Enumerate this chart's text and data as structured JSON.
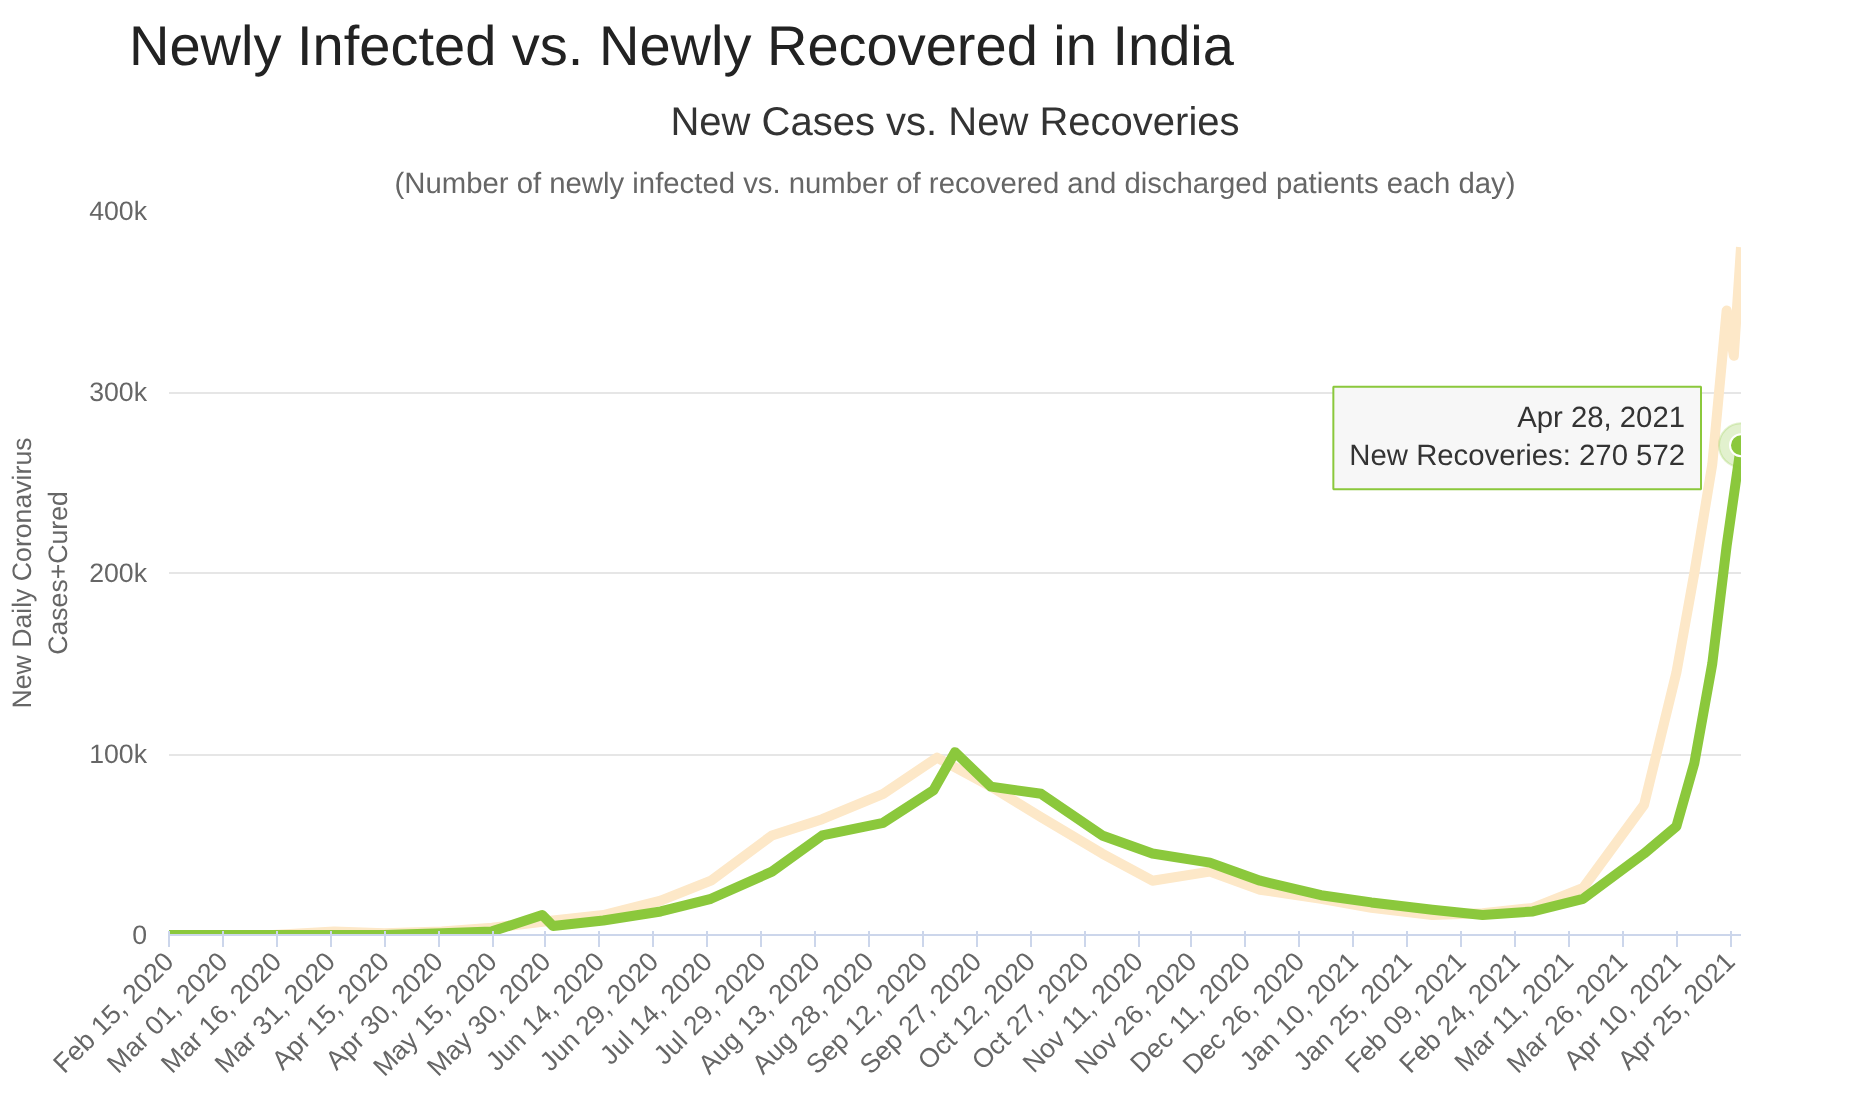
{
  "chart_data": {
    "type": "line",
    "title": "New Cases vs. New Recoveries",
    "subtitle": "(Number of newly infected vs. number of recovered and discharged patients each day)",
    "ylabel": "New Daily Coronavirus Cases+Cured",
    "annotations": [
      "Newly Infected vs. Newly Recovered in India",
      {
        "text": "Apr 28, 2021\nNew Recoveries: 270 572",
        "x": "2021-04-28",
        "y": 270572
      }
    ],
    "series": [
      {
        "color": "#fde8c8",
        "x": [
          "2020-02-15",
          "2020-03-15",
          "2020-04-01",
          "2020-04-15",
          "2020-05-01",
          "2020-05-15",
          "2020-06-01",
          "2020-06-15",
          "2020-07-01",
          "2020-07-15",
          "2020-08-01",
          "2020-08-15",
          "2020-09-01",
          "2020-09-16",
          "2020-10-01",
          "2020-10-15",
          "2020-11-01",
          "2020-11-15",
          "2020-12-01",
          "2020-12-15",
          "2021-01-01",
          "2021-01-15",
          "2021-02-01",
          "2021-02-15",
          "2021-03-01",
          "2021-03-15",
          "2021-04-01",
          "2021-04-10",
          "2021-04-15",
          "2021-04-20",
          "2021-04-24",
          "2021-04-26",
          "2021-04-28"
        ],
        "values": [
          0,
          0,
          2000,
          1000,
          2000,
          4000,
          8000,
          11000,
          19000,
          30000,
          55000,
          64000,
          78000,
          98000,
          82000,
          65000,
          45000,
          30000,
          35000,
          25000,
          20000,
          15000,
          11000,
          12000,
          15000,
          26000,
          72000,
          145000,
          200000,
          260000,
          345000,
          320000,
          380000
        ]
      },
      {
        "color": "#8bc83c",
        "x": [
          "2020-02-15",
          "2020-03-15",
          "2020-04-01",
          "2020-04-15",
          "2020-05-01",
          "2020-05-15",
          "2020-05-29",
          "2020-06-01",
          "2020-06-15",
          "2020-07-01",
          "2020-07-15",
          "2020-08-01",
          "2020-08-15",
          "2020-09-01",
          "2020-09-15",
          "2020-09-21",
          "2020-10-01",
          "2020-10-15",
          "2020-11-01",
          "2020-11-15",
          "2020-12-01",
          "2020-12-15",
          "2021-01-01",
          "2021-01-15",
          "2021-02-01",
          "2021-02-15",
          "2021-03-01",
          "2021-03-15",
          "2021-04-01",
          "2021-04-10",
          "2021-04-15",
          "2021-04-20",
          "2021-04-24",
          "2021-04-28"
        ],
        "values": [
          0,
          0,
          0,
          0,
          1000,
          2000,
          11000,
          5000,
          8000,
          13000,
          20000,
          35000,
          55000,
          62000,
          80000,
          101000,
          82000,
          78000,
          55000,
          45000,
          40000,
          30000,
          22000,
          18000,
          14000,
          11000,
          13000,
          20000,
          45000,
          60000,
          95000,
          150000,
          215000,
          270572
        ]
      }
    ],
    "xlim": [
      "2020-02-15",
      "2021-04-28"
    ],
    "xticks": [
      {
        "value": "2020-02-15",
        "label": "Feb 15, 2020"
      },
      {
        "value": "2020-03-01",
        "label": "Mar 01, 2020"
      },
      {
        "value": "2020-03-16",
        "label": "Mar 16, 2020"
      },
      {
        "value": "2020-03-31",
        "label": "Mar 31, 2020"
      },
      {
        "value": "2020-04-15",
        "label": "Apr 15, 2020"
      },
      {
        "value": "2020-04-30",
        "label": "Apr 30, 2020"
      },
      {
        "value": "2020-05-15",
        "label": "May 15, 2020"
      },
      {
        "value": "2020-05-30",
        "label": "May 30, 2020"
      },
      {
        "value": "2020-06-14",
        "label": "Jun 14, 2020"
      },
      {
        "value": "2020-06-29",
        "label": "Jun 29, 2020"
      },
      {
        "value": "2020-07-14",
        "label": "Jul 14, 2020"
      },
      {
        "value": "2020-07-29",
        "label": "Jul 29, 2020"
      },
      {
        "value": "2020-08-13",
        "label": "Aug 13, 2020"
      },
      {
        "value": "2020-08-28",
        "label": "Aug 28, 2020"
      },
      {
        "value": "2020-09-12",
        "label": "Sep 12, 2020"
      },
      {
        "value": "2020-09-27",
        "label": "Sep 27, 2020"
      },
      {
        "value": "2020-10-12",
        "label": "Oct 12, 2020"
      },
      {
        "value": "2020-10-27",
        "label": "Oct 27, 2020"
      },
      {
        "value": "2020-11-11",
        "label": "Nov 11, 2020"
      },
      {
        "value": "2020-11-26",
        "label": "Nov 26, 2020"
      },
      {
        "value": "2020-12-11",
        "label": "Dec 11, 2020"
      },
      {
        "value": "2020-12-26",
        "label": "Dec 26, 2020"
      },
      {
        "value": "2021-01-10",
        "label": "Jan 10, 2021"
      },
      {
        "value": "2021-01-25",
        "label": "Jan 25, 2021"
      },
      {
        "value": "2021-02-09",
        "label": "Feb 09, 2021"
      },
      {
        "value": "2021-02-24",
        "label": "Feb 24, 2021"
      },
      {
        "value": "2021-03-11",
        "label": "Mar 11, 2021"
      },
      {
        "value": "2021-03-26",
        "label": "Mar 26, 2021"
      },
      {
        "value": "2021-04-10",
        "label": "Apr 10, 2021"
      },
      {
        "value": "2021-04-25",
        "label": "Apr 25, 2021"
      }
    ],
    "ylim": [
      0,
      400000
    ],
    "yticks": [
      0,
      {
        "value": 100000,
        "label": "100k"
      },
      {
        "value": 200000,
        "label": "200k"
      },
      {
        "value": 300000,
        "label": "300k"
      },
      {
        "value": 400000,
        "label": "400k"
      }
    ],
    "grid": "y",
    "line_style": "solid"
  }
}
